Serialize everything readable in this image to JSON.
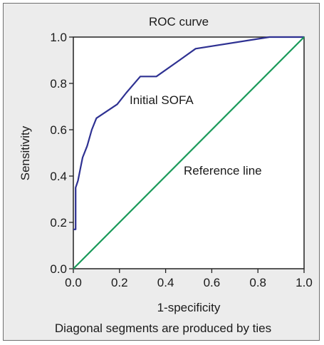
{
  "chart_data": {
    "type": "line",
    "title": "ROC curve",
    "xlabel": "1-specificity",
    "ylabel": "Sensitivity",
    "footnote": "Diagonal segments are produced by ties",
    "xlim": [
      0.0,
      1.0
    ],
    "ylim": [
      0.0,
      1.0
    ],
    "xticks": [
      0.0,
      0.2,
      0.4,
      0.6,
      0.8,
      1.0
    ],
    "yticks": [
      0.0,
      0.2,
      0.4,
      0.6,
      0.8,
      1.0
    ],
    "xtick_labels": [
      "0.0",
      "0.2",
      "0.4",
      "0.6",
      "0.8",
      "1.0"
    ],
    "ytick_labels": [
      "0.0",
      "0.2",
      "0.4",
      "0.6",
      "0.8",
      "1.0"
    ],
    "grid": false,
    "series": [
      {
        "name": "Initial SOFA",
        "color": "#2e3192",
        "points": [
          [
            0.0,
            0.17
          ],
          [
            0.01,
            0.17
          ],
          [
            0.01,
            0.35
          ],
          [
            0.02,
            0.38
          ],
          [
            0.03,
            0.43
          ],
          [
            0.04,
            0.48
          ],
          [
            0.06,
            0.53
          ],
          [
            0.08,
            0.6
          ],
          [
            0.1,
            0.65
          ],
          [
            0.19,
            0.71
          ],
          [
            0.23,
            0.76
          ],
          [
            0.29,
            0.83
          ],
          [
            0.36,
            0.83
          ],
          [
            0.46,
            0.9
          ],
          [
            0.53,
            0.95
          ],
          [
            0.85,
            1.0
          ],
          [
            1.0,
            1.0
          ]
        ]
      },
      {
        "name": "Reference line",
        "color": "#1a9a5a",
        "points": [
          [
            0.0,
            0.0
          ],
          [
            1.0,
            1.0
          ]
        ]
      }
    ]
  }
}
